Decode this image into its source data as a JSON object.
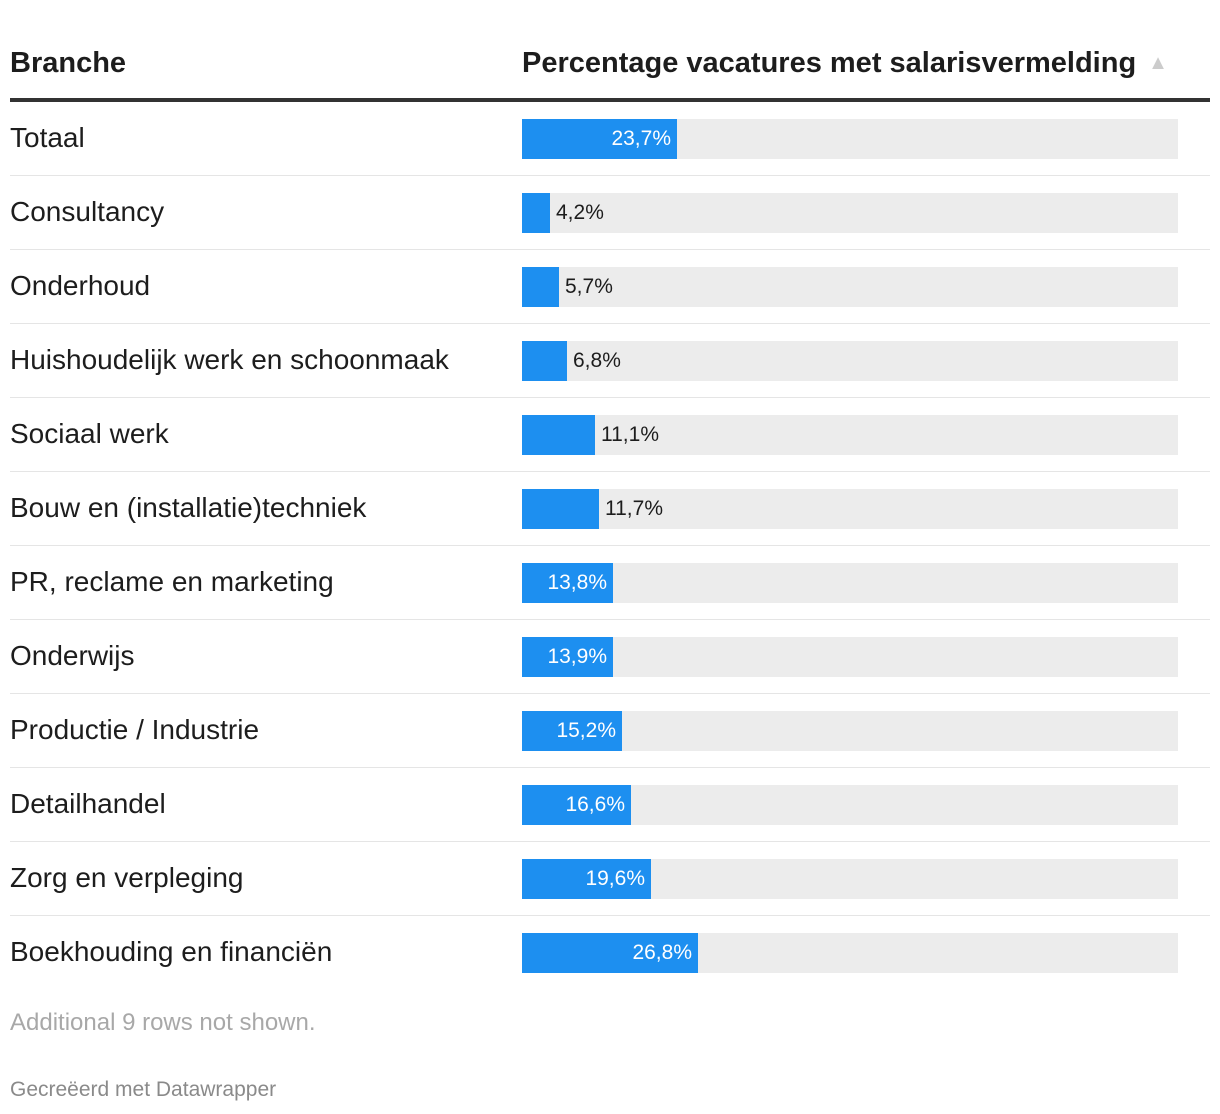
{
  "header": {
    "col_branche": "Branche",
    "col_percentage": "Percentage vacatures met salarisvermelding",
    "sort_icon": "▲"
  },
  "chart_data": {
    "type": "table",
    "columns": [
      "Branche",
      "Percentage vacatures met salarisvermelding"
    ],
    "sort": "ascending",
    "bar_color": "#1d8ff0",
    "track_color": "#ececec",
    "max_value": 100,
    "rows": [
      {
        "label": "Totaal",
        "value": 23.7,
        "display": "23,7%"
      },
      {
        "label": "Consultancy",
        "value": 4.2,
        "display": "4,2%"
      },
      {
        "label": "Onderhoud",
        "value": 5.7,
        "display": "5,7%"
      },
      {
        "label": "Huishoudelijk werk en schoonmaak",
        "value": 6.8,
        "display": "6,8%"
      },
      {
        "label": "Sociaal werk",
        "value": 11.1,
        "display": "11,1%"
      },
      {
        "label": "Bouw en (installatie)techniek",
        "value": 11.7,
        "display": "11,7%"
      },
      {
        "label": "PR, reclame en marketing",
        "value": 13.8,
        "display": "13,8%"
      },
      {
        "label": "Onderwijs",
        "value": 13.9,
        "display": "13,9%"
      },
      {
        "label": "Productie / Industrie",
        "value": 15.2,
        "display": "15,2%"
      },
      {
        "label": "Detailhandel",
        "value": 16.6,
        "display": "16,6%"
      },
      {
        "label": "Zorg en verpleging",
        "value": 19.6,
        "display": "19,6%"
      },
      {
        "label": "Boekhouding en financiën",
        "value": 26.8,
        "display": "26,8%"
      }
    ]
  },
  "notes": "Additional 9 rows not shown.",
  "credit": "Gecreëerd met Datawrapper"
}
